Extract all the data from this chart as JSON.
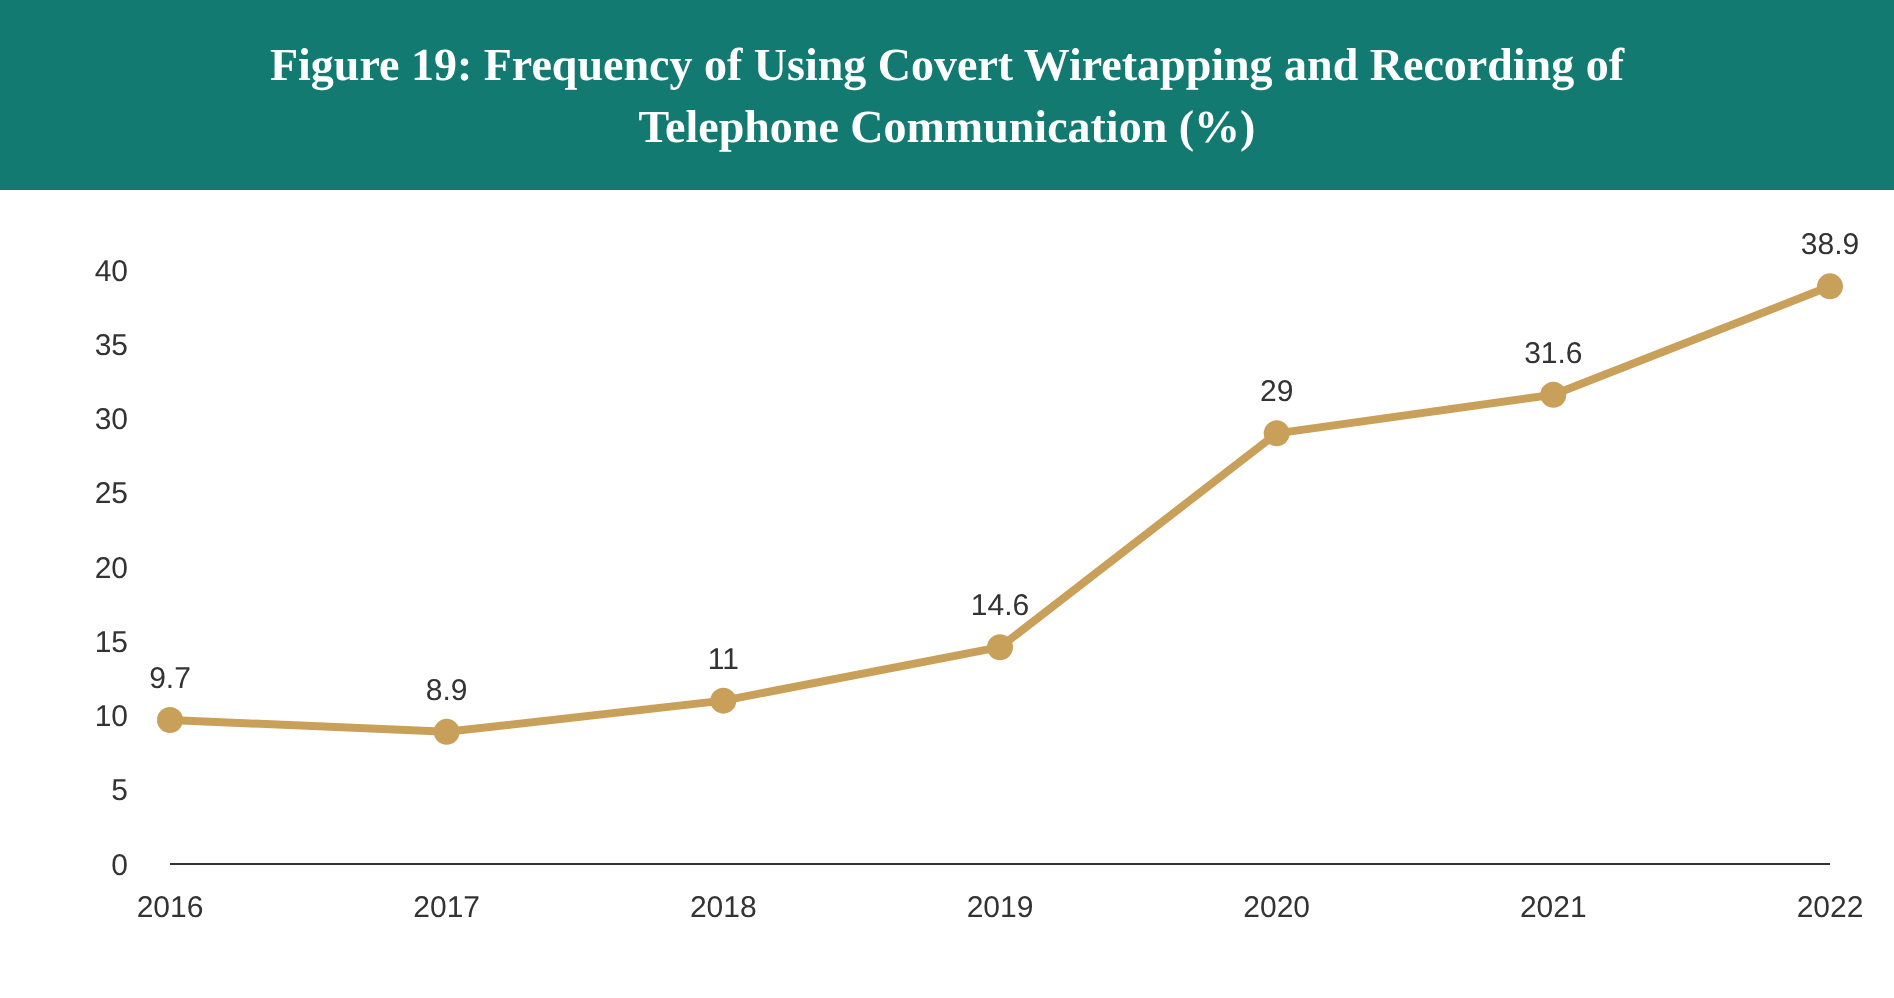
{
  "chart_data": {
    "type": "line",
    "title": "Figure 19: Frequency of Using Covert Wiretapping and Recording of Telephone Communication (%)",
    "categories": [
      "2016",
      "2017",
      "2018",
      "2019",
      "2020",
      "2021",
      "2022"
    ],
    "series": [
      {
        "color": "#c9a05a",
        "values": [
          9.7,
          8.9,
          11,
          14.6,
          29,
          31.6,
          38.9
        ]
      }
    ],
    "ylim": [
      0,
      40
    ],
    "yticks": [
      0,
      5,
      10,
      15,
      20,
      25,
      30,
      35,
      40
    ],
    "grid": false,
    "legend": false,
    "marker": "circle",
    "line_style": "solid",
    "data_labels": true
  }
}
